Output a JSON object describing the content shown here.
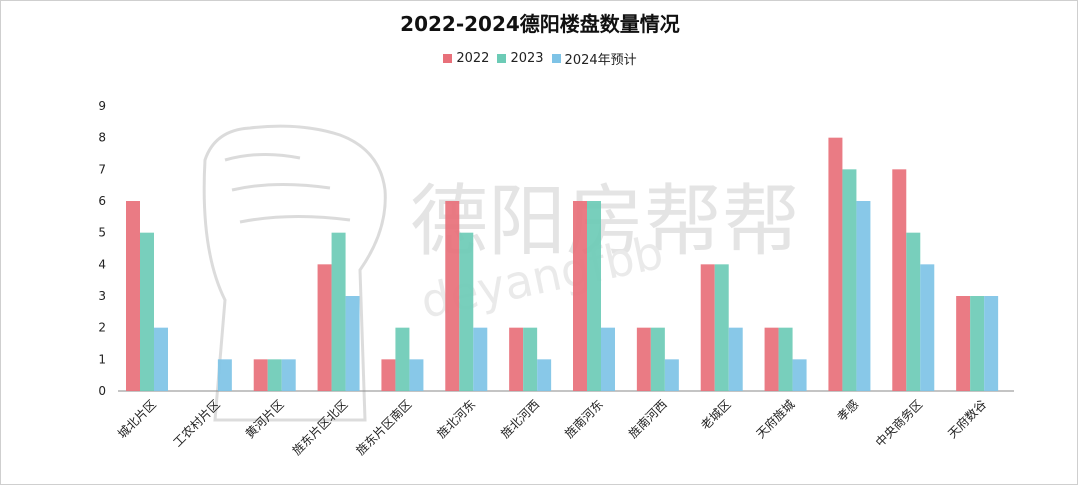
{
  "chart_data": {
    "type": "bar",
    "title": "2022-2024德阳楼盘数量情况",
    "categories": [
      "城北片区",
      "工农村片区",
      "黄河片区",
      "旌东片区北区",
      "旌东片区南区",
      "旌北河东",
      "旌北河西",
      "旌南河东",
      "旌南河西",
      "老城区",
      "天府旌城",
      "孝感",
      "中央商务区",
      "天府数谷"
    ],
    "series": [
      {
        "name": "2022",
        "color": "#E8707A",
        "values": [
          6,
          0,
          1,
          4,
          1,
          6,
          2,
          6,
          2,
          4,
          2,
          8,
          7,
          3
        ]
      },
      {
        "name": "2023",
        "color": "#6CCBB6",
        "values": [
          5,
          0,
          1,
          5,
          2,
          5,
          2,
          6,
          2,
          4,
          2,
          7,
          5,
          3
        ]
      },
      {
        "name": "2024年预计",
        "color": "#7EC3E6",
        "values": [
          2,
          1,
          1,
          3,
          1,
          2,
          1,
          2,
          1,
          2,
          1,
          6,
          4,
          3
        ]
      }
    ],
    "ylim": [
      0,
      9
    ],
    "yticks": [
      "0",
      "1",
      "2",
      "3",
      "4",
      "5",
      "6",
      "7",
      "8",
      "9"
    ],
    "grid": false,
    "legend_position": "top-center",
    "xlabel": "",
    "ylabel": ""
  },
  "watermark": {
    "cn": "德阳房帮帮",
    "en": "deyangfbb"
  }
}
